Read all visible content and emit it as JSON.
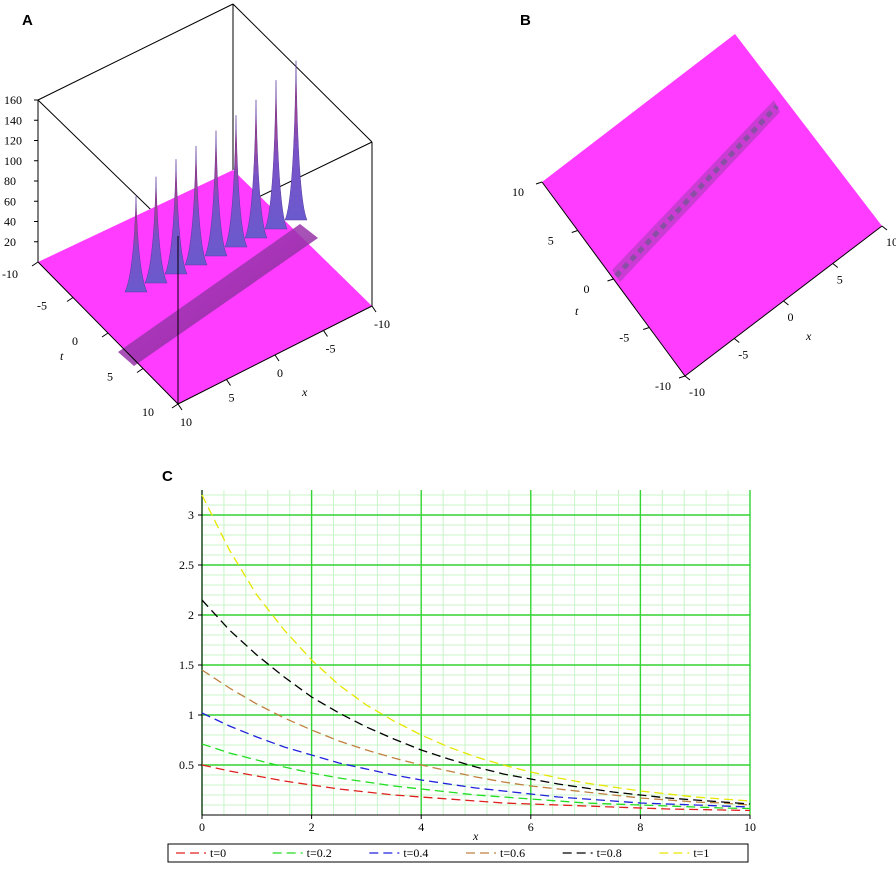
{
  "panels": {
    "a": "A",
    "b": "B",
    "c": "C"
  },
  "chart_data": [
    {
      "panel": "A",
      "type": "surface-3d",
      "surface_color": "#ff3cff",
      "peak_colors": [
        "#d8304a",
        "#6a5acd"
      ],
      "z_ticks": [
        "160",
        "140",
        "120",
        "100",
        "80",
        "60",
        "40",
        "20"
      ],
      "t_axis": {
        "label": "t",
        "ticks": [
          "-10",
          "-5",
          "0",
          "5",
          "10"
        ]
      },
      "x_axis": {
        "label": "x",
        "ticks": [
          "-10",
          "-5",
          "0",
          "5",
          "10"
        ]
      },
      "zlim": [
        0,
        160
      ],
      "peaks": [
        90,
        100,
        108,
        112,
        118,
        124,
        130,
        140,
        150
      ]
    },
    {
      "panel": "B",
      "type": "surface-top-view",
      "surface_color": "#ff3cff",
      "t_axis": {
        "label": "t",
        "ticks": [
          "10",
          "5",
          "0",
          "-5",
          "-10"
        ]
      },
      "x_axis": {
        "label": "x",
        "ticks": [
          "10",
          "5",
          "0",
          "-5",
          "-10"
        ]
      }
    },
    {
      "panel": "C",
      "type": "line",
      "xlabel": "x",
      "ylabel": "",
      "xlim": [
        0,
        10
      ],
      "ylim": [
        0,
        3.25
      ],
      "x_ticks": [
        "0",
        "2",
        "4",
        "6",
        "8",
        "10"
      ],
      "y_ticks": [
        "0.5",
        "1",
        "1.5",
        "2",
        "2.5",
        "3"
      ],
      "grid": true,
      "legend_position": "bottom",
      "x": [
        0,
        0.5,
        1,
        1.5,
        2,
        2.5,
        3,
        3.5,
        4,
        4.5,
        5,
        5.5,
        6,
        6.5,
        7,
        7.5,
        8,
        8.5,
        9,
        9.5,
        10
      ],
      "series": [
        {
          "name": "t=0",
          "color": "#e0201e",
          "values": [
            0.5,
            0.44,
            0.39,
            0.34,
            0.3,
            0.26,
            0.23,
            0.2,
            0.18,
            0.16,
            0.14,
            0.12,
            0.11,
            0.1,
            0.09,
            0.08,
            0.07,
            0.06,
            0.055,
            0.05,
            0.045
          ]
        },
        {
          "name": "t=0.2",
          "color": "#22dd22",
          "values": [
            0.71,
            0.62,
            0.55,
            0.48,
            0.42,
            0.37,
            0.33,
            0.29,
            0.26,
            0.23,
            0.2,
            0.18,
            0.16,
            0.14,
            0.12,
            0.11,
            0.1,
            0.09,
            0.08,
            0.07,
            0.065
          ]
        },
        {
          "name": "t=0.4",
          "color": "#2222dd",
          "values": [
            1.02,
            0.89,
            0.78,
            0.68,
            0.6,
            0.52,
            0.46,
            0.4,
            0.35,
            0.31,
            0.27,
            0.24,
            0.21,
            0.18,
            0.16,
            0.14,
            0.12,
            0.11,
            0.1,
            0.09,
            0.08
          ]
        },
        {
          "name": "t=0.6",
          "color": "#c08040",
          "values": [
            1.45,
            1.27,
            1.11,
            0.97,
            0.85,
            0.74,
            0.65,
            0.57,
            0.5,
            0.44,
            0.38,
            0.33,
            0.29,
            0.26,
            0.23,
            0.2,
            0.17,
            0.15,
            0.13,
            0.12,
            0.1
          ]
        },
        {
          "name": "t=0.8",
          "color": "#000000",
          "values": [
            2.15,
            1.85,
            1.6,
            1.38,
            1.18,
            1.02,
            0.88,
            0.76,
            0.65,
            0.56,
            0.48,
            0.41,
            0.36,
            0.31,
            0.27,
            0.23,
            0.2,
            0.17,
            0.15,
            0.13,
            0.11
          ]
        },
        {
          "name": "t=1",
          "color": "#e6e600",
          "values": [
            3.2,
            2.65,
            2.2,
            1.85,
            1.55,
            1.3,
            1.1,
            0.94,
            0.8,
            0.68,
            0.58,
            0.5,
            0.43,
            0.37,
            0.32,
            0.28,
            0.24,
            0.21,
            0.18,
            0.16,
            0.14
          ]
        }
      ]
    }
  ]
}
